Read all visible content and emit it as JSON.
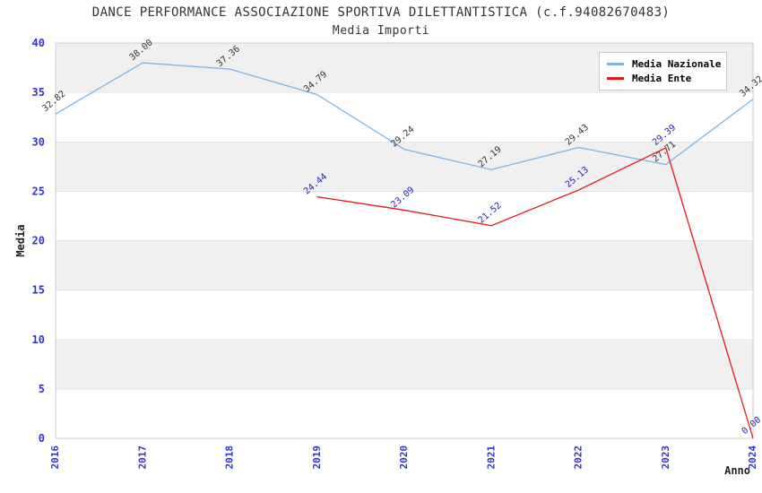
{
  "title": "DANCE PERFORMANCE ASSOCIAZIONE SPORTIVA DILETTANTISTICA (c.f.94082670483)",
  "subtitle": "Media Importi",
  "colors": {
    "band_gray": "#f0f0f0",
    "band_white": "#ffffff",
    "gridline": "#e3e3e3",
    "plot_border": "#cccccc",
    "tick_label": "#3333cc",
    "title_text": "#333333"
  },
  "chart_data": {
    "type": "line",
    "title": "DANCE PERFORMANCE ASSOCIAZIONE SPORTIVA DILETTANTISTICA (c.f.94082670483)",
    "subtitle": "Media Importi",
    "xlabel": "Anno",
    "ylabel": "Media",
    "ylim": [
      0,
      40
    ],
    "ytick_step": 5,
    "xticks": [
      2016,
      2017,
      2018,
      2019,
      2020,
      2021,
      2022,
      2023,
      2024
    ],
    "grid": "horizontal-bands",
    "legend_position": "top-right",
    "series": [
      {
        "name": "Media Nazionale",
        "color": "#7eb3e8",
        "label_color": "#333333",
        "x": [
          2016,
          2017,
          2018,
          2019,
          2020,
          2021,
          2022,
          2023,
          2024
        ],
        "values": [
          32.82,
          38.0,
          37.36,
          34.79,
          29.24,
          27.19,
          29.43,
          27.71,
          34.32
        ]
      },
      {
        "name": "Media Ente",
        "color": "#e81717",
        "label_color": "#2222bb",
        "x": [
          2019,
          2020,
          2021,
          2022,
          2023,
          2024
        ],
        "values": [
          24.44,
          23.09,
          21.52,
          25.13,
          29.39,
          0.0
        ]
      }
    ]
  }
}
